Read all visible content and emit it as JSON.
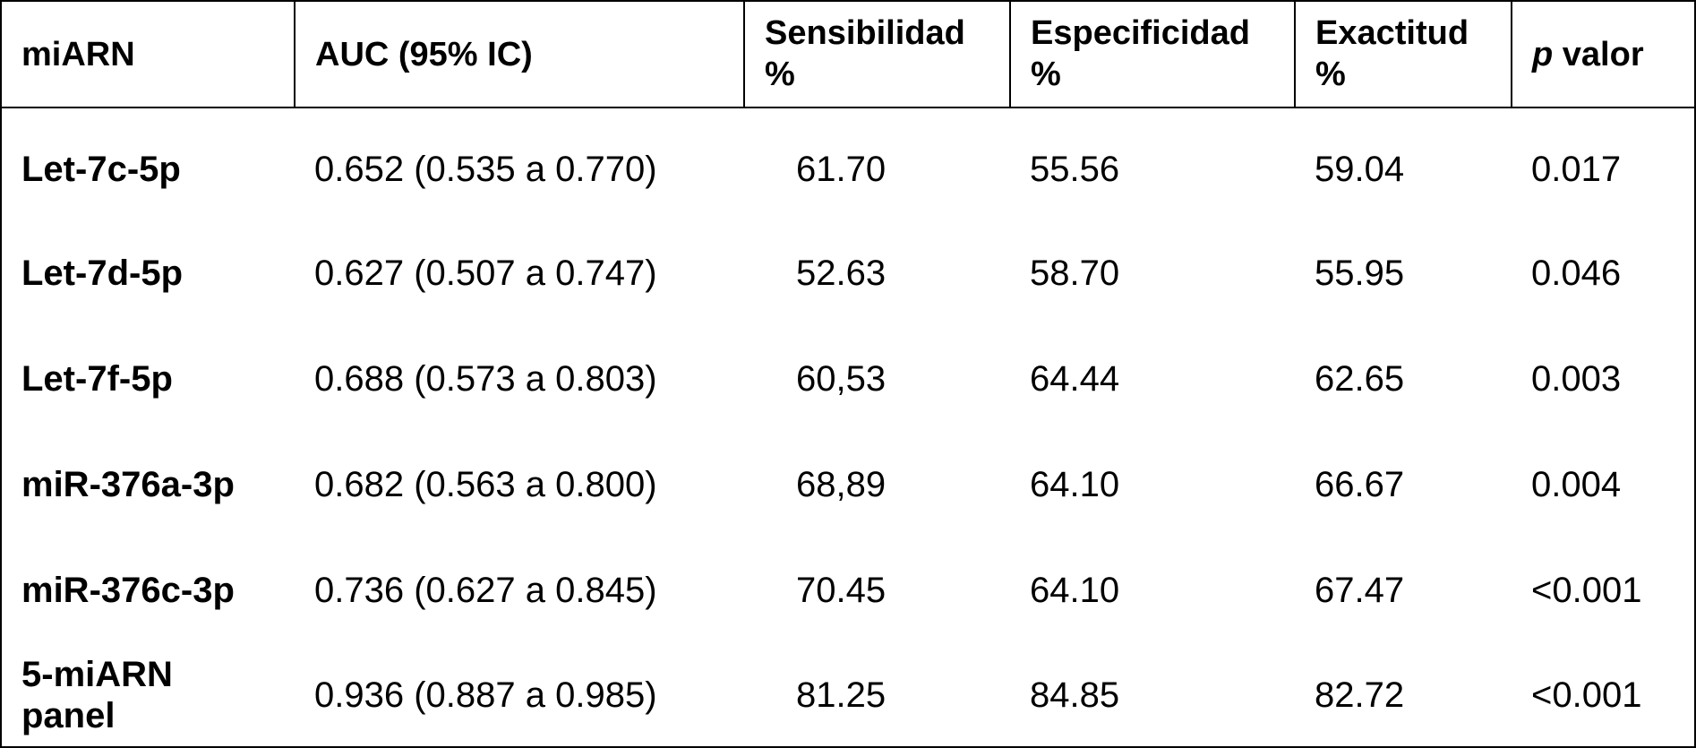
{
  "table": {
    "headers": {
      "mirna": "miARN",
      "auc": "AUC (95% IC)",
      "sens_line1": "Sensibilidad",
      "sens_line2": "%",
      "espec_line1": "Especificidad",
      "espec_line2": "%",
      "exact_line1": "Exactitud",
      "exact_line2": "%",
      "p_italic": "p",
      "p_rest": " valor"
    },
    "rows": [
      {
        "name": "Let-7c-5p",
        "auc": "0.652 (0.535 a 0.770)",
        "sens": "61.70",
        "espec": "55.56",
        "exact": "59.04",
        "p": "0.017"
      },
      {
        "name": "Let-7d-5p",
        "auc": "0.627 (0.507 a 0.747)",
        "sens": "52.63",
        "espec": "58.70",
        "exact": "55.95",
        "p": "0.046"
      },
      {
        "name": "Let-7f-5p",
        "auc": "0.688 (0.573 a 0.803)",
        "sens": "60,53",
        "espec": "64.44",
        "exact": "62.65",
        "p": "0.003"
      },
      {
        "name": "miR-376a-3p",
        "auc": "0.682 (0.563 a 0.800)",
        "sens": "68,89",
        "espec": "64.10",
        "exact": "66.67",
        "p": "0.004"
      },
      {
        "name": "miR-376c-3p",
        "auc": "0.736 (0.627 a 0.845)",
        "sens": "70.45",
        "espec": "64.10",
        "exact": "67.47",
        "p": "<0.001"
      },
      {
        "name_line1": "5-miARN",
        "name_line2": "panel",
        "auc": "0.936 (0.887 a 0.985)",
        "sens": "81.25",
        "espec": "84.85",
        "exact": "82.72",
        "p": "<0.001"
      }
    ]
  }
}
